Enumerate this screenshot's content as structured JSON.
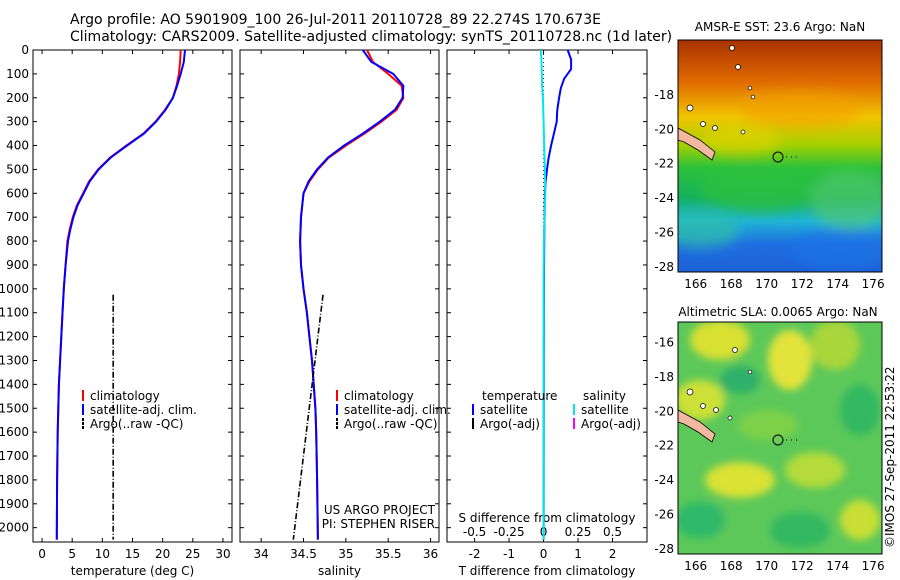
{
  "header": {
    "line1": "Argo profile: AO 5901909_100 26-Jul-2011 20110728_89 22.274S 170.673E",
    "line2": "Climatology: CARS2009. Satellite-adjusted climatology: synTS_20110728.nc (1d later)"
  },
  "stamp": "©IMOS 27-Sep-2011 22:53:22",
  "colors": {
    "climatology": "#ff0000",
    "satellite_temperature": "#0000ff",
    "satellite_salinity": "#00e5ee",
    "argo": "#000000",
    "argo_adj_salinity": "#ff00ff"
  },
  "chart_data": [
    {
      "type": "line",
      "xlabel": "temperature (deg C)",
      "ylabel": "",
      "xlim": [
        -1.5,
        31.5
      ],
      "ylim": [
        2060,
        0
      ],
      "xticks": [
        0,
        5,
        10,
        15,
        20,
        25,
        30
      ],
      "yticks": [
        0,
        100,
        200,
        300,
        400,
        500,
        600,
        700,
        800,
        900,
        1000,
        1100,
        1200,
        1300,
        1400,
        1500,
        1600,
        1700,
        1800,
        1900,
        2000
      ],
      "legend": {
        "position": "lower-middle",
        "entries": [
          "climatology",
          "satellite-adj. clim.",
          "Argo(..raw -QC)"
        ]
      },
      "series": [
        {
          "name": "climatology",
          "color": "#ff0000",
          "x": [
            23.0,
            22.9,
            22.7,
            22.3,
            21.7,
            20.4,
            18.8,
            16.8,
            14.0,
            11.3,
            9.3,
            7.8,
            6.8,
            5.8,
            5.1,
            4.6,
            4.2,
            3.9,
            3.6,
            3.4,
            3.2,
            3.0,
            2.8,
            2.7,
            2.6,
            2.5,
            2.45
          ],
          "y": [
            0,
            50,
            100,
            150,
            200,
            250,
            300,
            350,
            400,
            450,
            500,
            550,
            600,
            650,
            700,
            750,
            800,
            900,
            1000,
            1100,
            1200,
            1300,
            1400,
            1500,
            1600,
            1800,
            2050
          ]
        },
        {
          "name": "satellite-adj. clim.",
          "color": "#0000ff",
          "x": [
            23.7,
            23.5,
            23.0,
            22.4,
            21.7,
            20.5,
            18.9,
            16.9,
            14.1,
            11.4,
            9.4,
            7.9,
            6.9,
            5.9,
            5.2,
            4.7,
            4.3,
            3.9,
            3.6,
            3.4,
            3.2,
            3.0,
            2.8,
            2.7,
            2.6,
            2.5,
            2.45
          ],
          "y": [
            0,
            50,
            100,
            150,
            200,
            250,
            300,
            350,
            400,
            450,
            500,
            550,
            600,
            650,
            700,
            750,
            800,
            900,
            1000,
            1100,
            1200,
            1300,
            1400,
            1500,
            1600,
            1800,
            2050
          ]
        },
        {
          "name": "Argo(..raw -QC)",
          "color": "#000000",
          "x": [
            11.8,
            11.8
          ],
          "y": [
            1025,
            2050
          ]
        }
      ]
    },
    {
      "type": "line",
      "xlabel": "salinity",
      "ylabel": "",
      "xlim": [
        33.75,
        36.1
      ],
      "ylim": [
        2060,
        0
      ],
      "xticks": [
        34,
        34.5,
        35,
        35.5,
        36
      ],
      "legend": {
        "position": "lower-middle",
        "entries": [
          "climatology",
          "satellite-adj. clim.",
          "Argo(..raw -QC)"
        ]
      },
      "annotations": [
        "US ARGO PROJECT",
        "PI: STEPHEN RISER"
      ],
      "series": [
        {
          "name": "climatology",
          "color": "#ff0000",
          "x": [
            35.25,
            35.32,
            35.5,
            35.66,
            35.68,
            35.6,
            35.42,
            35.22,
            35.0,
            34.8,
            34.67,
            34.57,
            34.5,
            34.47,
            34.46,
            34.47,
            34.5,
            34.54,
            34.57,
            34.6,
            34.62,
            34.64,
            34.65,
            34.66,
            34.67
          ],
          "y": [
            0,
            50,
            100,
            150,
            200,
            250,
            300,
            350,
            400,
            450,
            500,
            550,
            600,
            700,
            800,
            900,
            1000,
            1100,
            1200,
            1300,
            1400,
            1500,
            1600,
            1800,
            2050
          ]
        },
        {
          "name": "satellite-adj. clim.",
          "color": "#0000ff",
          "x": [
            35.2,
            35.3,
            35.56,
            35.68,
            35.67,
            35.58,
            35.4,
            35.2,
            34.98,
            34.79,
            34.66,
            34.56,
            34.5,
            34.47,
            34.46,
            34.47,
            34.5,
            34.54,
            34.57,
            34.6,
            34.62,
            34.64,
            34.65,
            34.66,
            34.67
          ],
          "y": [
            0,
            50,
            100,
            150,
            200,
            250,
            300,
            350,
            400,
            450,
            500,
            550,
            600,
            700,
            800,
            900,
            1000,
            1100,
            1200,
            1300,
            1400,
            1500,
            1600,
            1800,
            2050
          ]
        },
        {
          "name": "Argo(..raw -QC)",
          "color": "#000000",
          "x": [
            34.73,
            34.38
          ],
          "y": [
            1025,
            2050
          ]
        }
      ]
    },
    {
      "type": "line",
      "xlabel": "T difference from climatology",
      "x2label": "S difference from climatology",
      "xlim": [
        -2.8,
        3.0
      ],
      "ylim": [
        2060,
        0
      ],
      "xticks": [
        -2,
        -1,
        0,
        1,
        2
      ],
      "x2ticks": [
        -0.5,
        -0.25,
        0,
        0.25,
        0.5
      ],
      "legend": {
        "position": "lower-middle",
        "entries": [
          "temperature",
          "satellite",
          "Argo(-adj)",
          "salinity",
          "satellite",
          "Argo(-adj)"
        ]
      },
      "series": [
        {
          "name": "satellite",
          "group": "temperature",
          "color": "#0000ff",
          "x": [
            0.7,
            0.8,
            0.8,
            0.6,
            0.5,
            0.45,
            0.4,
            0.38,
            0.3,
            0.22,
            0.15,
            0.1,
            0.06,
            0.04,
            0.03,
            0.02,
            0.01,
            0.0
          ],
          "y": [
            0,
            40,
            80,
            120,
            160,
            200,
            250,
            300,
            350,
            400,
            450,
            500,
            550,
            600,
            700,
            800,
            1000,
            2050
          ]
        },
        {
          "name": "satellite",
          "group": "salinity",
          "color": "#00e5ee",
          "x": [
            -0.08,
            -0.06,
            -0.05,
            -0.04,
            -0.02,
            0.0,
            0.02,
            0.04,
            0.05,
            0.03,
            0.01,
            0.0,
            0.0
          ],
          "y": [
            0,
            50,
            100,
            150,
            200,
            300,
            400,
            500,
            600,
            700,
            800,
            1000,
            2050
          ]
        }
      ]
    },
    {
      "type": "heatmap",
      "title": "AMSR-E SST: 23.6 Argo: NaN",
      "xlim": [
        165,
        176.5
      ],
      "ylim": [
        -28.3,
        -14.8
      ],
      "xticks": [
        166,
        168,
        170,
        172,
        174,
        176
      ],
      "yticks": [
        -18,
        -20,
        -22,
        -24,
        -26,
        -28
      ],
      "argo_position": {
        "lon": 170.673,
        "lat": -22.274
      }
    },
    {
      "type": "heatmap",
      "title": "Altimetric SLA: 0.0065 Argo: NaN",
      "xlim": [
        165,
        176.5
      ],
      "ylim": [
        -28.3,
        -14.8
      ],
      "xticks": [
        166,
        168,
        170,
        172,
        174,
        176
      ],
      "yticks": [
        -16,
        -18,
        -20,
        -22,
        -24,
        -26,
        -28
      ],
      "argo_position": {
        "lon": 170.673,
        "lat": -22.274
      }
    }
  ]
}
